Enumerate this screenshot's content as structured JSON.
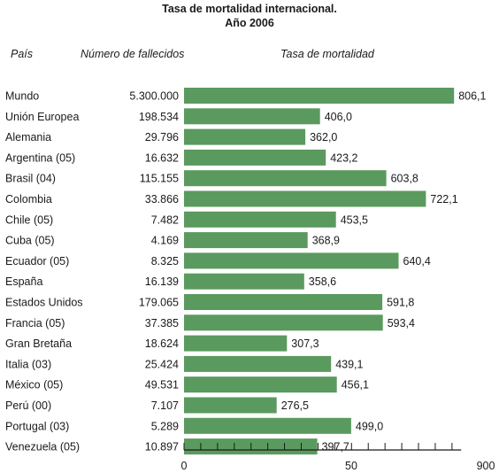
{
  "title_line1": "Tasa de mortalidad internacional.",
  "title_line2": "Año 2006",
  "headers": {
    "country": "País",
    "deaths": "Número de fallecidos",
    "rate": "Tasa de mortalidad"
  },
  "chart_data": {
    "type": "bar",
    "orientation": "horizontal",
    "bar_color": "#5a9a5e",
    "categories": [
      "Mundo",
      "Unión Europea",
      "Alemania",
      "Argentina (05)",
      "Brasil (04)",
      "Colombia",
      "Chile (05)",
      "Cuba (05)",
      "Ecuador (05)",
      "España",
      "Estados Unidos",
      "Francia (05)",
      "Gran Bretaña",
      "Italia (03)",
      "México (05)",
      "Perú (00)",
      "Portugal (03)",
      "Venezuela (05)"
    ],
    "deaths": [
      "5.300.000",
      "198.534",
      "29.796",
      "16.632",
      "115.155",
      "33.866",
      "7.482",
      "4.169",
      "8.325",
      "16.139",
      "179.065",
      "37.385",
      "18.624",
      "25.424",
      "49.531",
      "7.107",
      "5.289",
      "10.897"
    ],
    "values": [
      806.1,
      406.0,
      362.0,
      423.2,
      603.8,
      722.1,
      453.5,
      368.9,
      640.4,
      358.6,
      591.8,
      593.4,
      307.3,
      439.1,
      456.1,
      276.5,
      499.0,
      397.7
    ],
    "value_labels": [
      "806,1",
      "406,0",
      "362,0",
      "423,2",
      "603,8",
      "722,1",
      "453,5",
      "368,9",
      "640,4",
      "358,6",
      "591,8",
      "593,4",
      "307,3",
      "439,1",
      "456,1",
      "276,5",
      "499,0",
      "397,7"
    ],
    "axis_ticks": [
      "0",
      "50",
      "900"
    ],
    "grid": false
  }
}
